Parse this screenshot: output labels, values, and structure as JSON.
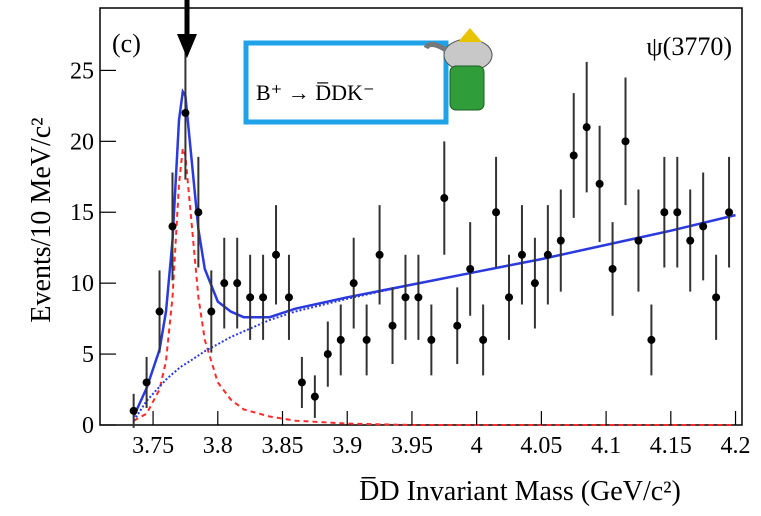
{
  "chart_data": {
    "type": "errorbar",
    "panel_label": "(c)",
    "resonance_label": "ψ(3770)",
    "decay_label": "B⁺ → D̅DK⁻",
    "xlabel": "D̅D Invariant Mass (GeV/c²)",
    "ylabel": "Events/10 MeV/c²",
    "xlim": [
      3.709,
      4.205
    ],
    "ylim": [
      0,
      29.4
    ],
    "xticks": [
      3.75,
      3.8,
      3.85,
      3.9,
      3.95,
      4,
      4.05,
      4.1,
      4.15,
      4.2
    ],
    "yticks": [
      0,
      5,
      10,
      15,
      20,
      25
    ],
    "color": "#000000",
    "x": [
      3.735,
      3.745,
      3.755,
      3.765,
      3.775,
      3.785,
      3.795,
      3.805,
      3.815,
      3.825,
      3.835,
      3.845,
      3.855,
      3.865,
      3.875,
      3.885,
      3.895,
      3.905,
      3.915,
      3.925,
      3.935,
      3.945,
      3.955,
      3.965,
      3.975,
      3.985,
      3.995,
      4.005,
      4.015,
      4.025,
      4.035,
      4.045,
      4.055,
      4.065,
      4.075,
      4.085,
      4.095,
      4.105,
      4.115,
      4.125,
      4.135,
      4.145,
      4.155,
      4.165,
      4.175,
      4.185,
      4.195
    ],
    "values": [
      1,
      3,
      8,
      14,
      22,
      15,
      8,
      10,
      10,
      9,
      9,
      12,
      9,
      3,
      2,
      5,
      6,
      10,
      6,
      12,
      7,
      9,
      9,
      6,
      16,
      7,
      11,
      6,
      15,
      9,
      12,
      10,
      12,
      13,
      19,
      21,
      17,
      11,
      20,
      13,
      6,
      15,
      15,
      13,
      14,
      9,
      15
    ],
    "errors": [
      1.2,
      1.8,
      2.9,
      3.8,
      4.7,
      3.9,
      2.9,
      3.2,
      3.2,
      3,
      3,
      3.5,
      3,
      1.8,
      1.5,
      2.3,
      2.5,
      3.2,
      2.5,
      3.5,
      2.7,
      3,
      3,
      2.5,
      4,
      2.7,
      3.3,
      2.5,
      3.9,
      3,
      3.5,
      3.2,
      3.5,
      3.6,
      4.4,
      4.6,
      4.1,
      3.3,
      4.5,
      3.6,
      2.5,
      3.9,
      3.9,
      3.6,
      3.8,
      3,
      3.9
    ],
    "curve_x": [
      3.735,
      3.745,
      3.755,
      3.76,
      3.765,
      3.77,
      3.773,
      3.775,
      3.78,
      3.785,
      3.79,
      3.8,
      3.81,
      3.82,
      3.84,
      3.86,
      3.9,
      3.95,
      4.0,
      4.05,
      4.1,
      4.15,
      4.2
    ],
    "curves": [
      {
        "color": "#ff2a2a",
        "style": "dashed",
        "values": [
          0.3,
          0.8,
          2.5,
          4.5,
          9,
          17,
          19.5,
          19,
          14,
          9,
          6,
          3,
          1.8,
          1.1,
          0.6,
          0.3,
          0.1,
          0,
          0,
          0,
          0,
          0,
          0
        ]
      },
      {
        "color": "#2a3adf",
        "style": "dotted",
        "values": [
          0.3,
          1.7,
          2.7,
          3.2,
          3.6,
          4.0,
          4.2,
          4.3,
          4.6,
          4.9,
          5.2,
          5.7,
          6.2,
          6.6,
          7.4,
          8.0,
          8.9,
          9.9,
          10.8,
          11.7,
          12.7,
          13.7,
          14.8
        ]
      },
      {
        "color": "#2a3adf",
        "style": "solid",
        "values": [
          0.6,
          2.6,
          5.3,
          8,
          13,
          21.5,
          23.5,
          23.2,
          18.5,
          13.8,
          11,
          8.7,
          8,
          7.6,
          7.6,
          8.2,
          9.0,
          9.9,
          10.8,
          11.7,
          12.7,
          13.7,
          14.8
        ]
      }
    ]
  }
}
